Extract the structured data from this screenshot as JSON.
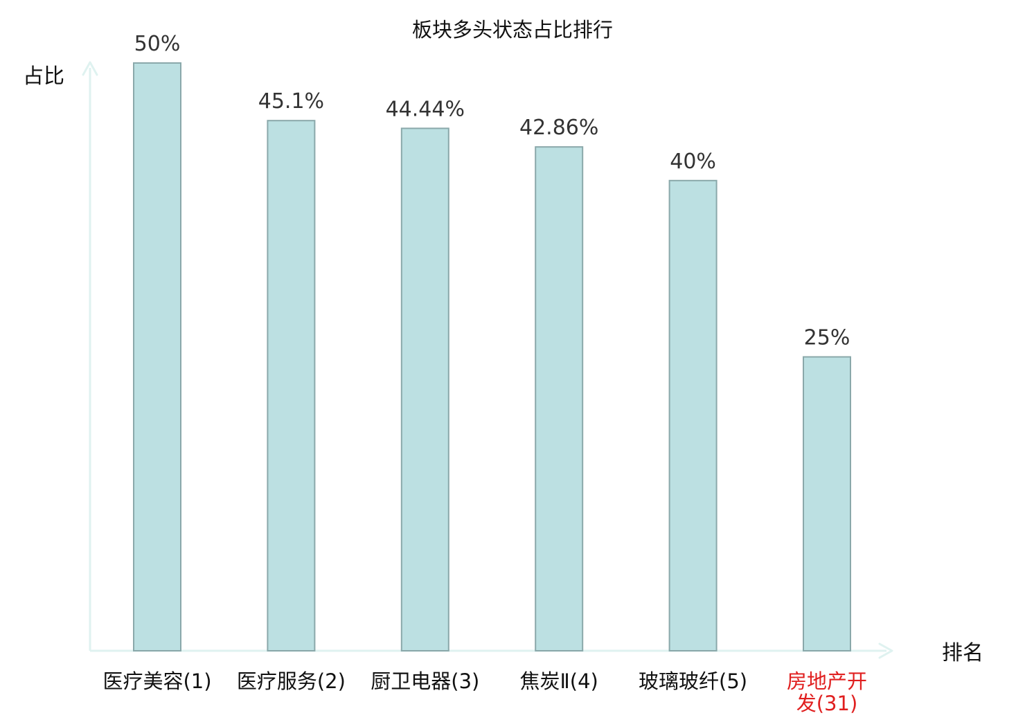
{
  "chart_data": {
    "type": "bar",
    "title": "板块多头状态占比排行",
    "xlabel": "排名",
    "ylabel": "占比",
    "categories": [
      [
        "医疗美容(1)"
      ],
      [
        "医疗服务(2)"
      ],
      [
        "厨卫电器(3)"
      ],
      [
        "焦炭Ⅱ(4)"
      ],
      [
        "玻璃玻纤(5)"
      ],
      [
        "房地产开",
        "发(31)"
      ]
    ],
    "values": [
      50,
      45.1,
      44.44,
      42.86,
      40,
      25
    ],
    "value_labels": [
      "50%",
      "45.1%",
      "44.44%",
      "42.86%",
      "40%",
      "25%"
    ],
    "ylim": [
      0,
      50
    ],
    "grid": false,
    "legend": "none",
    "colors": {
      "bar_fill": "#bce0e2",
      "bar_stroke": "#8aa8aa",
      "axis": "#dff2f0",
      "text": "#111111",
      "value_text": "#333333",
      "highlight_label": "#e01f1f"
    },
    "highlight_index": 5
  }
}
